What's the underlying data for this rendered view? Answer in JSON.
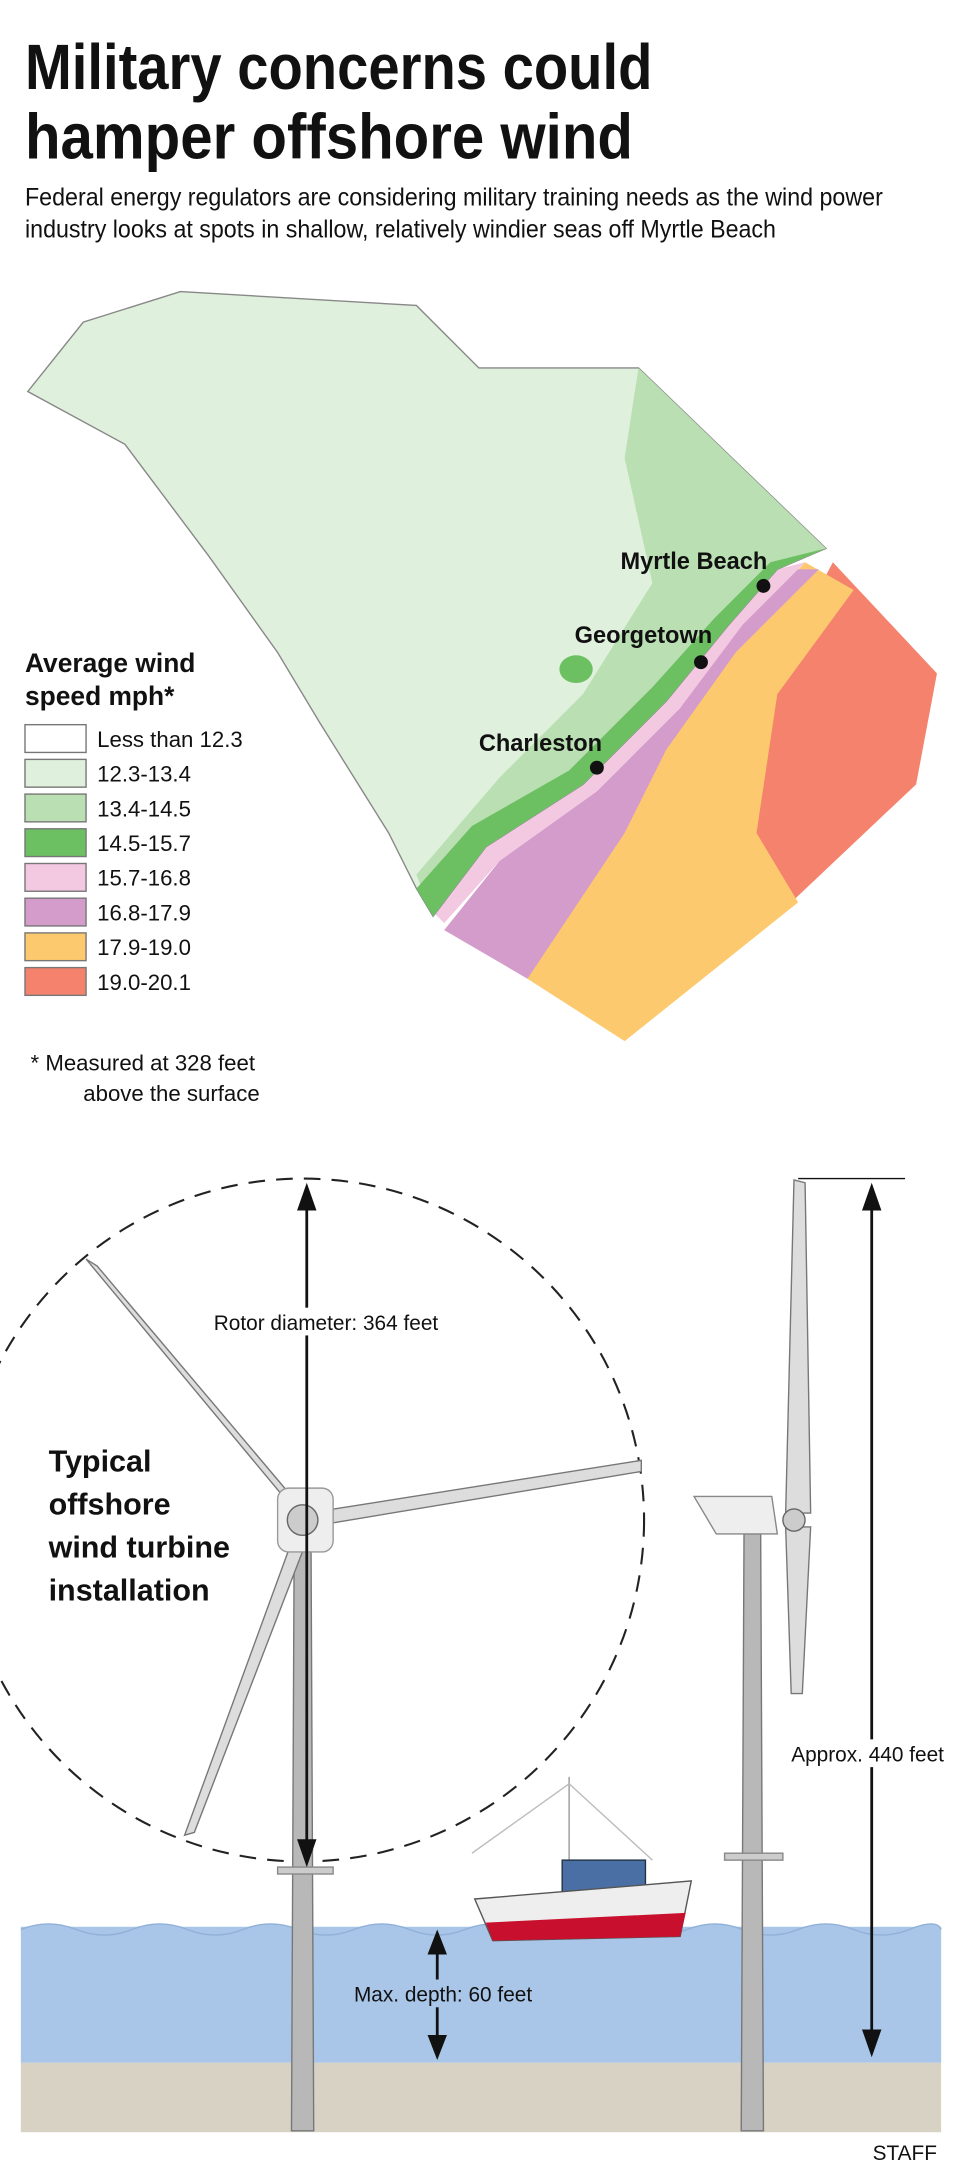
{
  "header": {
    "title_lines": [
      "Military concerns could",
      "hamper offshore wind"
    ],
    "subtitle_lines": [
      "Federal energy regulators are considering military training needs as the wind power",
      "industry looks at spots in shallow, relatively windier seas off Myrtle Beach"
    ]
  },
  "map": {
    "legend": {
      "title_lines": [
        "Average wind",
        "speed mph*"
      ],
      "items": [
        {
          "label": "Less than 12.3",
          "color": "#ffffff"
        },
        {
          "label": "12.3-13.4",
          "color": "#dff0dc"
        },
        {
          "label": "13.4-14.5",
          "color": "#b9dfb2"
        },
        {
          "label": "14.5-15.7",
          "color": "#6cc062"
        },
        {
          "label": "15.7-16.8",
          "color": "#f2c9e0"
        },
        {
          "label": "16.8-17.9",
          "color": "#d49ccb"
        },
        {
          "label": "17.9-19.0",
          "color": "#fcc96f"
        },
        {
          "label": "19.0-20.1",
          "color": "#f4826c"
        }
      ]
    },
    "footnote_lines": [
      "* Measured at 328 feet",
      "above the surface"
    ],
    "cities": [
      "Myrtle Beach",
      "Georgetown",
      "Charleston"
    ]
  },
  "diagram": {
    "caption_lines": [
      "Typical",
      "offshore",
      "wind turbine",
      "installation"
    ],
    "rotor": "Rotor diameter: 364 feet",
    "height": "Approx. 440 feet",
    "depth": "Max. depth: 60 feet"
  },
  "credit": "STAFF"
}
